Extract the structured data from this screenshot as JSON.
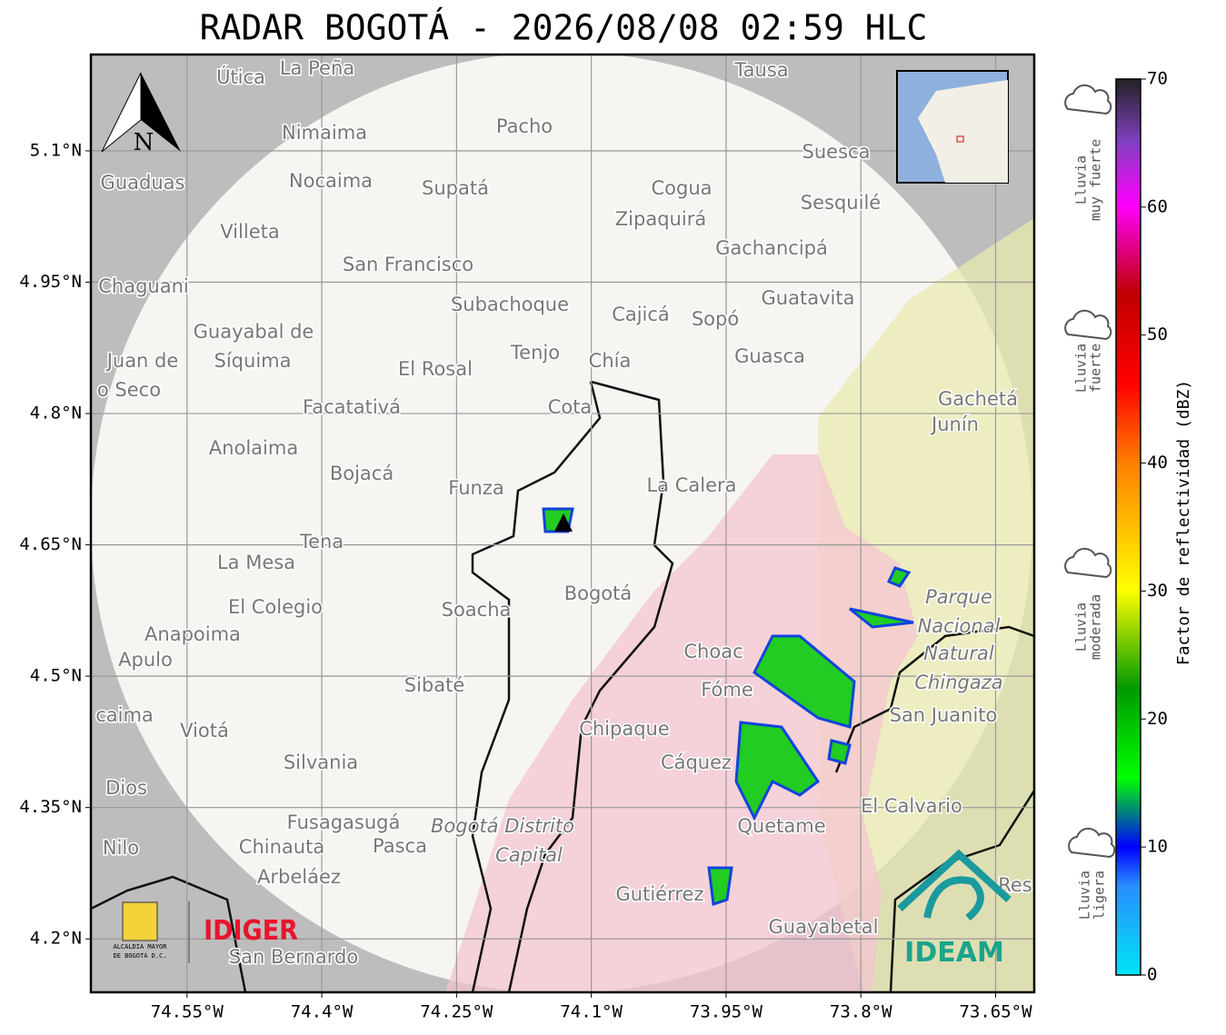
{
  "title": "RADAR BOGOTÁ - 2026/08/08 02:59 HLC",
  "map": {
    "lonlim": [
      -74.657,
      -73.607
    ],
    "latlim": [
      4.139,
      5.21
    ],
    "lon_ticks": [
      {
        "value": -74.55,
        "label": "74.55°W"
      },
      {
        "value": -74.4,
        "label": "74.4°W"
      },
      {
        "value": -74.25,
        "label": "74.25°W"
      },
      {
        "value": -74.1,
        "label": "74.1°W"
      },
      {
        "value": -73.95,
        "label": "73.95°W"
      },
      {
        "value": -73.8,
        "label": "73.8°W"
      },
      {
        "value": -73.65,
        "label": "73.65°W"
      }
    ],
    "lat_ticks": [
      {
        "value": 5.1,
        "label": "5.1°N"
      },
      {
        "value": 4.95,
        "label": "4.95°N"
      },
      {
        "value": 4.8,
        "label": "4.8°N"
      },
      {
        "value": 4.65,
        "label": "4.65°N"
      },
      {
        "value": 4.5,
        "label": "4.5°N"
      },
      {
        "value": 4.35,
        "label": "4.35°N"
      },
      {
        "value": 4.2,
        "label": "4.2°N"
      }
    ],
    "north": "N",
    "places": [
      "La Peña",
      "Útica",
      "Tausa",
      "Pacho",
      "Nimaima",
      "Guaduas",
      "Nocaima",
      "Supatá",
      "Cogua",
      "Suesca",
      "Sesquilé",
      "Villeta",
      "Zipaquirá",
      "Gachancipá",
      "San Francisco",
      "Chaguani",
      "Subachoque",
      "Cajicá",
      "Sopó",
      "Guatavita",
      "Guayabal de",
      "Síquima",
      "Juan de",
      "o Seco",
      "Tenjo",
      "Chía",
      "Guasca",
      "El Rosal",
      "Facatativá",
      "Cota",
      "Gachetá",
      "Junín",
      "Anolaima",
      "Bojacá",
      "Funza",
      "La Calera",
      "Tena",
      "La Mesa",
      "El Colegio",
      "Soacha",
      "Bogotá",
      "Parque",
      "Nacional",
      "Natural",
      "Chingaza",
      "Anapoima",
      "Apulo",
      "Choac",
      "Fóme",
      "Sibaté",
      "San Juanito",
      "caima",
      "Chipaque",
      "Viotá",
      "Silvania",
      "Cáquez",
      "El Calvario",
      "Dios",
      "Fusagasugá",
      "Bogotá Distrito",
      "Capital",
      "Quetame",
      "Nilo",
      "Chinauta",
      "Pasca",
      "Arbeláez",
      "Gutiérrez",
      "Res",
      "Guayabetal",
      "San Bernardo"
    ]
  },
  "logos": {
    "alcaldia": [
      "ALCALDÍA MAYOR",
      "DE BOGOTÁ D.C."
    ],
    "idiger": "IDIGER",
    "ideam": "IDEAM"
  },
  "colorbar": {
    "label": "Factor de reflectividad (dBZ)",
    "lim": [
      0,
      70
    ],
    "ticks": [
      0,
      10,
      20,
      30,
      40,
      50,
      60,
      70
    ]
  },
  "rain_levels": [
    [
      "Lluvia",
      "muy fuerte"
    ],
    [
      "Lluvia",
      "fuerte"
    ],
    [
      "Lluvia",
      "moderada"
    ],
    [
      "Lluvia",
      "ligera"
    ]
  ]
}
